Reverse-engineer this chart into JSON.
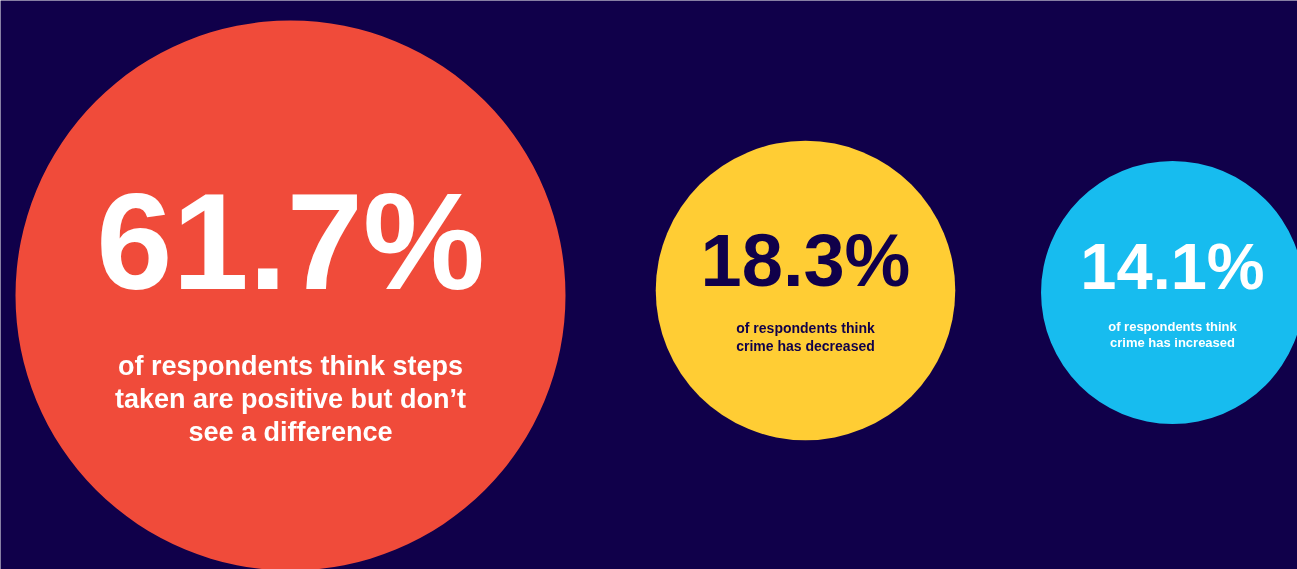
{
  "chart_data": {
    "type": "other",
    "categories": [
      "of respondents think steps taken are positive but don’t see a difference",
      "of respondents think crime has decreased",
      "of respondents think crime has increased"
    ],
    "values": [
      61.7,
      18.3,
      14.1
    ],
    "value_labels": [
      "61.7%",
      "18.3%",
      "14.1%"
    ],
    "colors": [
      "#f04b3a",
      "#ffcd34",
      "#17bcef"
    ]
  }
}
